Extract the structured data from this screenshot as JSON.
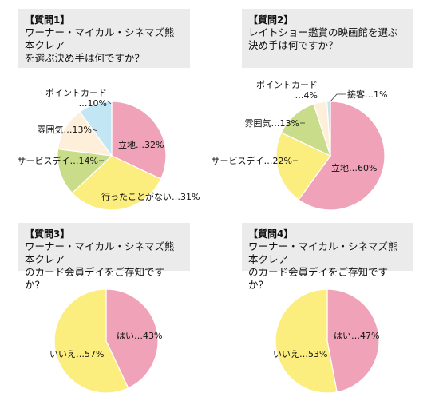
{
  "chart_data": [
    {
      "type": "pie",
      "title": "【質問1】",
      "subtitle": "ワーナー・マイカル・シネマズ熊本クレア\nを選ぶ決め手は何ですか？",
      "slices": [
        {
          "label": "立地",
          "value": 32,
          "display": "立地…32%",
          "color": "#f0a3b8"
        },
        {
          "label": "行ったことがない",
          "value": 31,
          "display": "行ったことがない…31%",
          "color": "#fbed7e"
        },
        {
          "label": "サービスデイ",
          "value": 14,
          "display": "サービスデイ…14%",
          "color": "#c8dc8a"
        },
        {
          "label": "雰囲気",
          "value": 13,
          "display": "雰囲気…13%",
          "color": "#fdefd9"
        },
        {
          "label": "ポイントカード",
          "value": 10,
          "display": [
            "ポイントカード",
            "…10%"
          ],
          "color": "#c3e6f5"
        }
      ]
    },
    {
      "type": "pie",
      "title": "【質問2】",
      "subtitle": "レイトショー鑑賞の映画館を選ぶ\n決め手は何ですか？",
      "slices": [
        {
          "label": "立地",
          "value": 60,
          "display": "立地…60%",
          "color": "#f0a3b8"
        },
        {
          "label": "サービスデイ",
          "value": 22,
          "display": "サービスデイ…22%",
          "color": "#fbed7e"
        },
        {
          "label": "雰囲気",
          "value": 13,
          "display": "雰囲気…13%",
          "color": "#c8dc8a"
        },
        {
          "label": "ポイントカード",
          "value": 4,
          "display": [
            "ポイントカード",
            "…4%"
          ],
          "color": "#fdefd9"
        },
        {
          "label": "接客",
          "value": 1,
          "display": "接客…1%",
          "color": "#c3e6f5"
        }
      ]
    },
    {
      "type": "pie",
      "title": "【質問3】",
      "subtitle": "ワーナー・マイカル・シネマズ熊本クレア\nのカード会員デイをご存知ですか？",
      "slices": [
        {
          "label": "はい",
          "value": 43,
          "display": "はい…43%",
          "color": "#f0a3b8"
        },
        {
          "label": "いいえ",
          "value": 57,
          "display": "いいえ…57%",
          "color": "#fbed7e"
        }
      ]
    },
    {
      "type": "pie",
      "title": "【質問4】",
      "subtitle": "ワーナー・マイカル・シネマズ熊本クレア\nのカード会員デイをご存知ですか？",
      "slices": [
        {
          "label": "はい",
          "value": 47,
          "display": "はい…47%",
          "color": "#f0a3b8"
        },
        {
          "label": "いいえ",
          "value": 53,
          "display": "いいえ…53%",
          "color": "#fbed7e"
        }
      ]
    }
  ]
}
